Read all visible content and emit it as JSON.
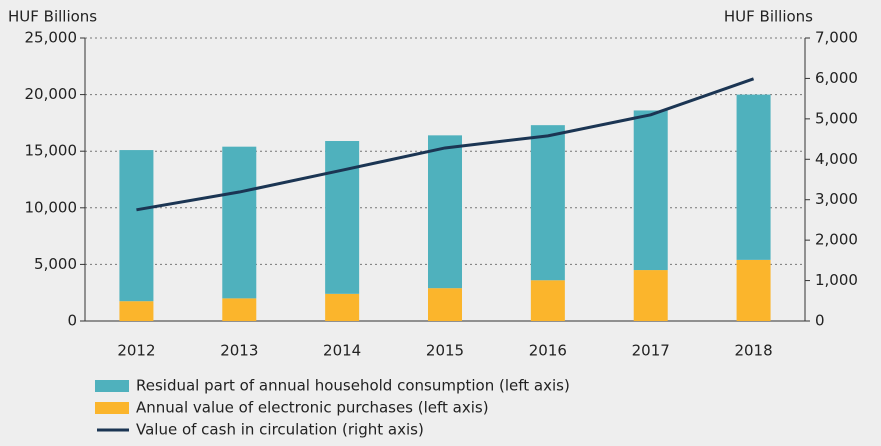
{
  "chart_data": {
    "type": "bar",
    "stacked": true,
    "ylabel": "HUF Billions",
    "y2label": "HUF Billions",
    "categories": [
      "2012",
      "2013",
      "2014",
      "2015",
      "2016",
      "2017",
      "2018"
    ],
    "series": [
      {
        "name": "Residual part of annual household consumption (left axis)",
        "color": "#4fb1bd",
        "type": "bar",
        "values": [
          13350,
          13400,
          13500,
          13500,
          13700,
          14100,
          14600
        ]
      },
      {
        "name": "Annual value of electronic purchases (left axis)",
        "color": "#fbb52c",
        "type": "bar",
        "values": [
          1750,
          2000,
          2400,
          2900,
          3600,
          4500,
          5400
        ]
      },
      {
        "name": "Value of cash in circulation (right axis)",
        "color": "#1b3553",
        "type": "line",
        "axis": "y2",
        "values": [
          2750,
          3190,
          3730,
          4280,
          4580,
          5100,
          5990
        ]
      }
    ],
    "ylim": [
      0,
      25000
    ],
    "yticks": [
      0,
      {
        "value": 5000,
        "label": "5,000"
      },
      {
        "value": 10000,
        "label": "10,000"
      },
      {
        "value": 15000,
        "label": "15,000"
      },
      {
        "value": 20000,
        "label": "20,000"
      },
      {
        "value": 25000,
        "label": "25,000"
      }
    ],
    "y2lim": [
      0,
      7000
    ],
    "y2ticks": [
      0,
      {
        "value": 1000,
        "label": "1,000"
      },
      {
        "value": 2000,
        "label": "2,000"
      },
      {
        "value": 3000,
        "label": "3,000"
      },
      {
        "value": 4000,
        "label": "4,000"
      },
      {
        "value": 5000,
        "label": "5,000"
      },
      {
        "value": 6000,
        "label": "6,000"
      },
      {
        "value": 7000,
        "label": "7,000"
      }
    ],
    "grid": true,
    "legend": "bottom"
  }
}
